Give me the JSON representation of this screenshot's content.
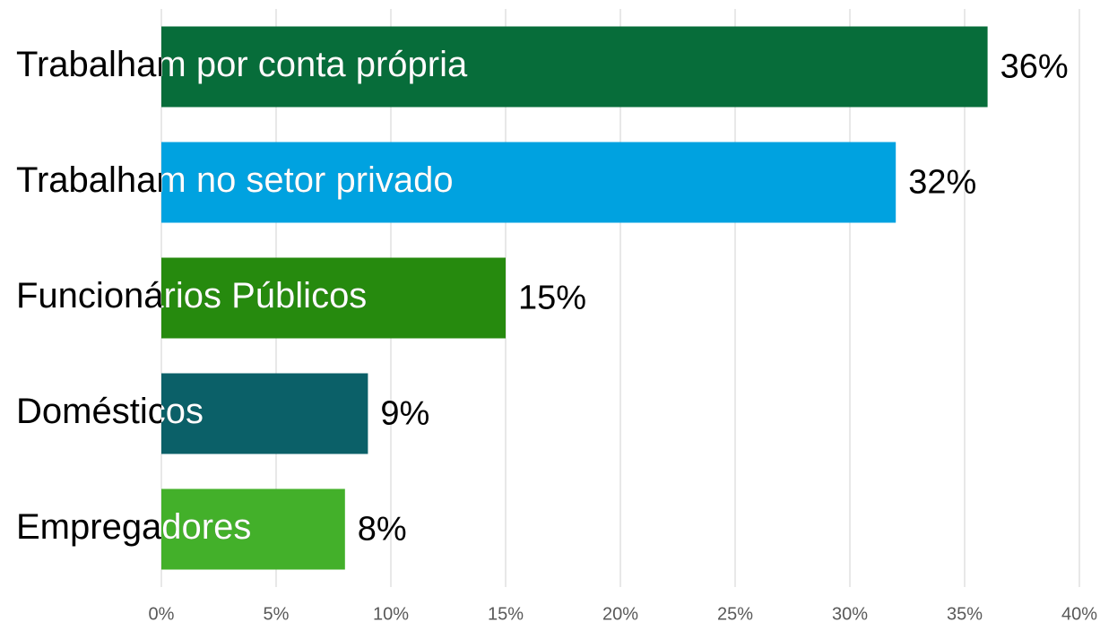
{
  "chart_data": {
    "type": "bar",
    "orientation": "horizontal",
    "categories": [
      "Trabalham por conta própria",
      "Trabalham no setor privado",
      "Funcionários Públicos",
      "Domésticos",
      "Empregadores"
    ],
    "values": [
      36,
      32,
      15,
      9,
      8
    ],
    "value_labels": [
      "36%",
      "32%",
      "15%",
      "9%",
      "8%"
    ],
    "colors": [
      "#076d3a",
      "#00a2e0",
      "#268a0e",
      "#0b6068",
      "#43b02a"
    ],
    "xlim": [
      0,
      40
    ],
    "xticks": [
      {
        "value": 0,
        "label": "0%"
      },
      {
        "value": 5,
        "label": "5%"
      },
      {
        "value": 10,
        "label": "10%"
      },
      {
        "value": 15,
        "label": "15%"
      },
      {
        "value": 20,
        "label": "20%"
      },
      {
        "value": 25,
        "label": "25%"
      },
      {
        "value": 30,
        "label": "30%"
      },
      {
        "value": 35,
        "label": "35%"
      },
      {
        "value": 40,
        "label": "40%"
      }
    ],
    "grid": true
  }
}
